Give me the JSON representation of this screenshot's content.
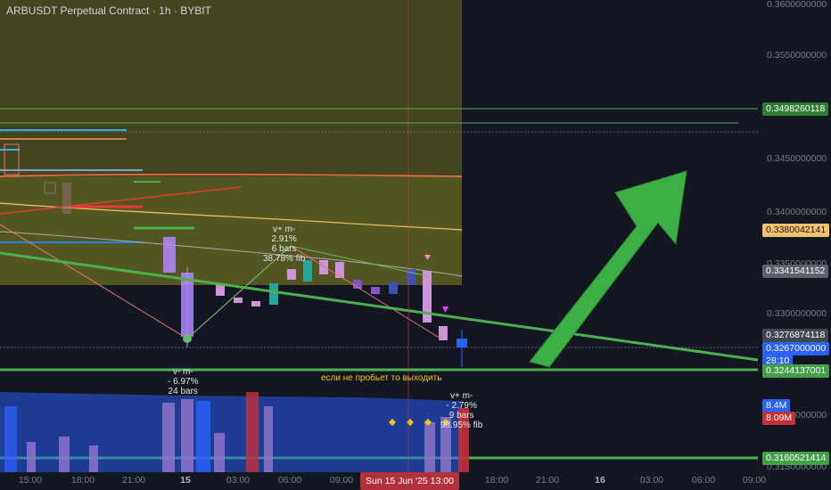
{
  "header": {
    "title": "ARBUSDT Perpetual Contract · 1h · BYBIT"
  },
  "price_axis": {
    "ticks": [
      "0.3600000000",
      "0.3550000000",
      "0.3450000000",
      "0.3400000000",
      "0.3350000000",
      "0.3300000000",
      "0.3200000000",
      "0.3150000000"
    ],
    "labels": [
      {
        "text": "0.3498260118",
        "bg": "#2e7d32",
        "fg": "#ffffff"
      },
      {
        "text": "0.3380042141",
        "bg": "#f5c16c",
        "fg": "#131722"
      },
      {
        "text": "0.3341541152",
        "bg": "#5d606b",
        "fg": "#ffffff"
      },
      {
        "text": "0.3276874118",
        "bg": "#434651",
        "fg": "#ffffff"
      },
      {
        "text": "0.3267000000",
        "bg": "#2962ff",
        "fg": "#ffffff"
      },
      {
        "text": "28:10",
        "bg": "#2962ff",
        "fg": "#ffffff"
      },
      {
        "text": "0.3244137001",
        "bg": "#43a047",
        "fg": "#ffffff"
      },
      {
        "text": "8.4M",
        "bg": "#2962ff",
        "fg": "#ffffff"
      },
      {
        "text": "8.09M",
        "bg": "#c2303a",
        "fg": "#ffffff"
      },
      {
        "text": "0.3160521414",
        "bg": "#43a047",
        "fg": "#ffffff"
      }
    ]
  },
  "time_axis": {
    "ticks": [
      {
        "text": "15:00",
        "bold": false
      },
      {
        "text": "18:00",
        "bold": false
      },
      {
        "text": "21:00",
        "bold": false
      },
      {
        "text": "15",
        "bold": true
      },
      {
        "text": "03:00",
        "bold": false
      },
      {
        "text": "06:00",
        "bold": false
      },
      {
        "text": "09:00",
        "bold": false
      },
      {
        "text": "18:00",
        "bold": false
      },
      {
        "text": "21:00",
        "bold": false
      },
      {
        "text": "16",
        "bold": true
      },
      {
        "text": "03:00",
        "bold": false
      },
      {
        "text": "06:00",
        "bold": false
      },
      {
        "text": "09:00",
        "bold": false
      }
    ],
    "highlight": "Sun 15 Jun '25   13:00"
  },
  "annotations": {
    "swing_up": [
      "v+ m-",
      "2.91%",
      "6 bars",
      "38.78% fib"
    ],
    "swing_low": [
      "v- m-",
      "- 6.97%",
      "24 bars"
    ],
    "swing_end": [
      "v+ m-",
      "- 2.79%",
      "9 bars",
      "98.95% fib"
    ],
    "note": "если не пробьет то выходить"
  },
  "colors": {
    "bg": "#131722",
    "up": "#26a69a",
    "down": "#ef5350",
    "arrow": "#3cb043",
    "trend": "#4caf50"
  }
}
